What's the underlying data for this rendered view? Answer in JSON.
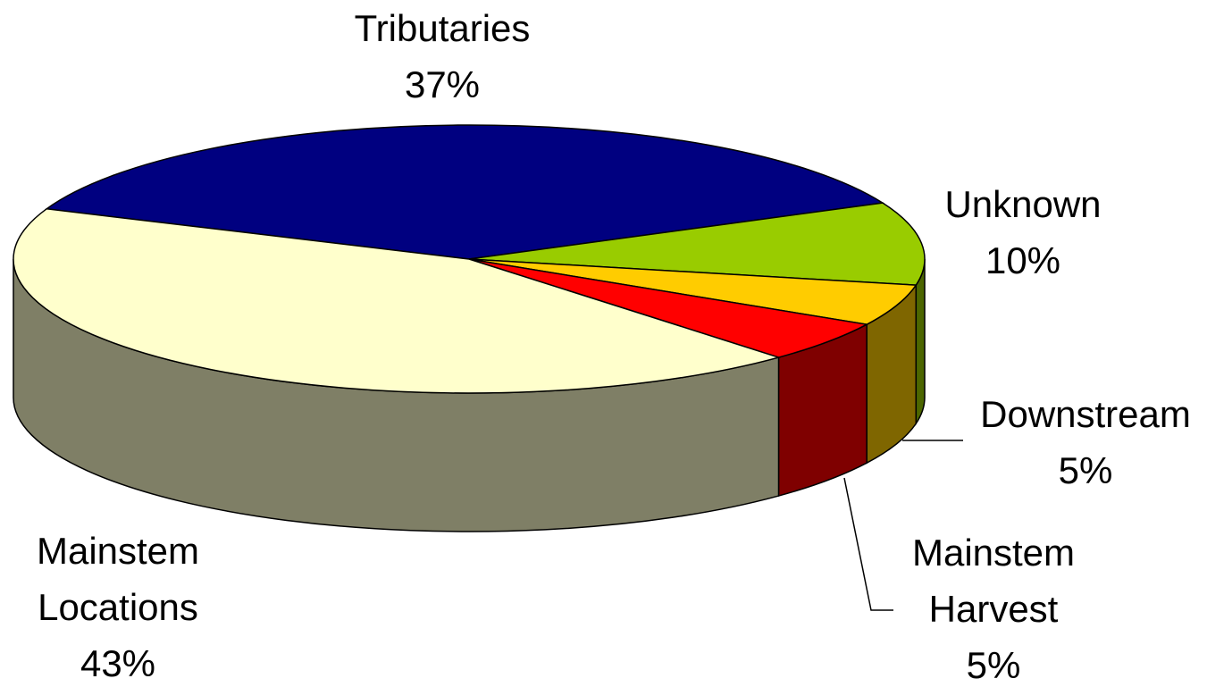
{
  "chart_data": {
    "type": "pie3d",
    "categories": [
      "Tributaries",
      "Unknown",
      "Downstream",
      "Mainstem Harvest",
      "Mainstem Locations"
    ],
    "values": [
      37,
      10,
      5,
      5,
      43
    ],
    "value_labels": [
      "37%",
      "10%",
      "5%",
      "5%",
      "43%"
    ],
    "colors": [
      "#000080",
      "#99cc00",
      "#ffcc00",
      "#ff0000",
      "#ffffcc"
    ]
  }
}
